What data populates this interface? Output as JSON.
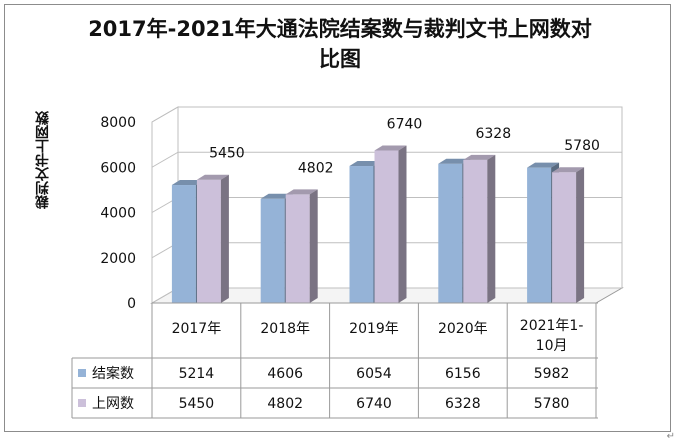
{
  "chart_data": {
    "type": "bar",
    "title": "2017年-2021年大通法院结案数与裁判文书上网数对比图",
    "ylabel": "裁判文书上网数",
    "xlabel": "",
    "categories": [
      "2017年",
      "2018年",
      "2019年",
      "2020年",
      "2021年1-10月"
    ],
    "series": [
      {
        "name": "结案数",
        "values": [
          5214,
          4606,
          6054,
          6156,
          5982
        ],
        "color": "#95b3d7"
      },
      {
        "name": "上网数",
        "values": [
          5450,
          4802,
          6740,
          6328,
          5780
        ],
        "color": "#ccc0da"
      }
    ],
    "data_labels_series": "上网数",
    "ylim": [
      0,
      8000
    ],
    "yticks": [
      0,
      2000,
      4000,
      6000,
      8000
    ],
    "grid": true,
    "style": "3d-clustered-column",
    "legend": "data-table-below"
  },
  "cursor_glyph": "↵"
}
